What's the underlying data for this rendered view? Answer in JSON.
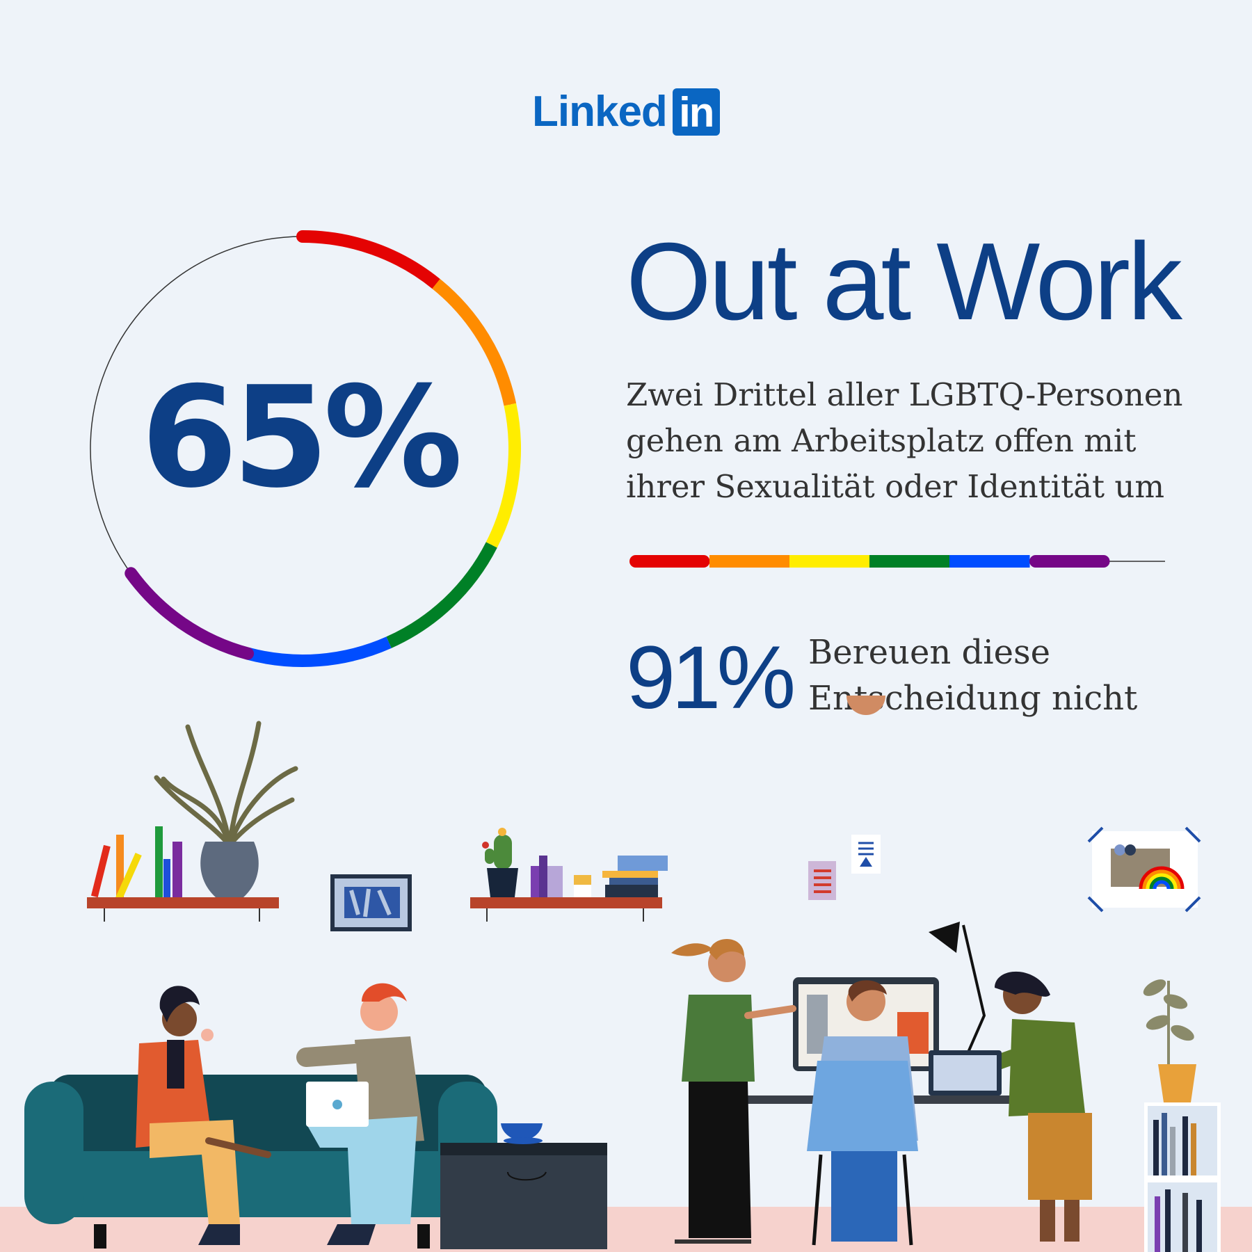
{
  "brand": {
    "logo_word": "Linked",
    "logo_box": "in"
  },
  "headline": {
    "title": "Out at Work"
  },
  "main_stat": {
    "value_text": "65%",
    "value": 65,
    "ring_colors": [
      "#e40303",
      "#ff8c00",
      "#ffed00",
      "#008026",
      "#004dff",
      "#750787"
    ],
    "description_lines": [
      "Zwei Drittel aller LGBTQ-Personen",
      "gehen am Arbeitsplatz offen mit",
      "ihrer Sexualität oder Identität um"
    ]
  },
  "divider": {
    "colors": [
      "#e40303",
      "#ff8c00",
      "#ffed00",
      "#008026",
      "#004dff",
      "#750787"
    ]
  },
  "secondary_stat": {
    "value_text": "91%",
    "description_lines": [
      "Bereuen diese",
      "Entscheidung nicht"
    ]
  },
  "illustration": {
    "scene_icons": [
      "plant-icon",
      "books-icon",
      "framed-picture-icon",
      "cactus-icon",
      "sofa-icon",
      "coffee-table-icon",
      "desk-icon",
      "monitor-icon",
      "desk-lamp-icon",
      "laptop-icon",
      "rainbow-picture-icon",
      "bookshelf-icon"
    ],
    "colors": {
      "floor": "#f6d2cd",
      "sofa": "#1b6b78",
      "shelf": "#b8442a"
    }
  }
}
